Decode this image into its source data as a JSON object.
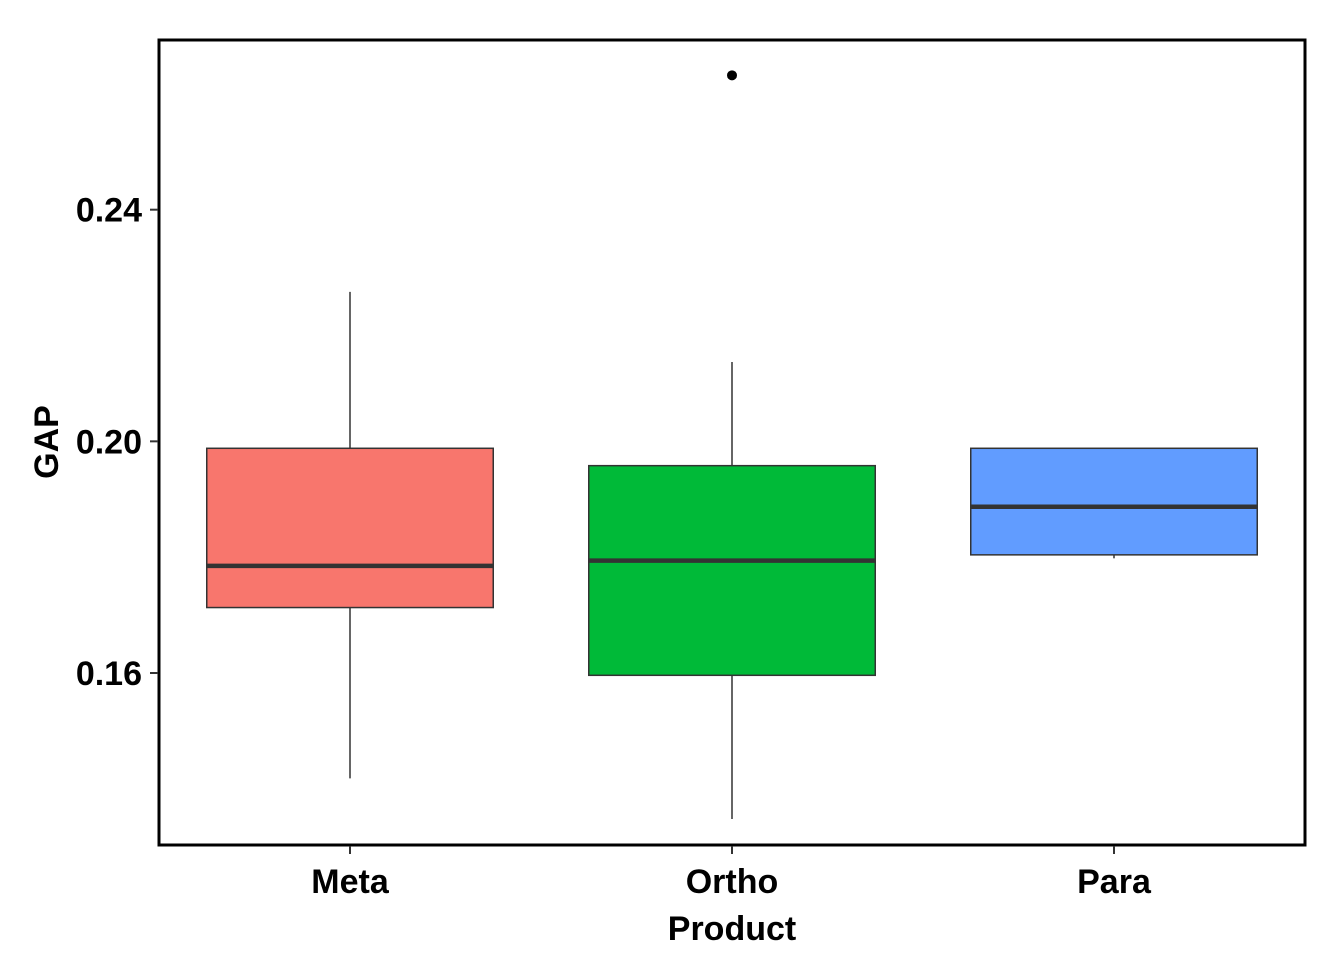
{
  "chart_data": {
    "type": "boxplot",
    "title": "",
    "xlabel": "Product",
    "ylabel": "GAP",
    "categories": [
      "Meta",
      "Ortho",
      "Para"
    ],
    "yticks": [
      "0.16",
      "0.20",
      "0.24"
    ],
    "ytick_values": [
      0.16,
      0.2,
      0.24
    ],
    "ylim": [
      0.1303,
      0.2693
    ],
    "grid": false,
    "legend": "none",
    "series": [
      {
        "category": "Meta",
        "color": "#F8766D",
        "whisker_low": 0.1418,
        "q1": 0.1713,
        "median": 0.1785,
        "q3": 0.1988,
        "whisker_high": 0.2258,
        "outliers": []
      },
      {
        "category": "Ortho",
        "color": "#00BA38",
        "whisker_low": 0.1348,
        "q1": 0.1596,
        "median": 0.1794,
        "q3": 0.1958,
        "whisker_high": 0.2137,
        "outliers": [
          0.2632
        ]
      },
      {
        "category": "Para",
        "color": "#619CFF",
        "whisker_low": 0.1798,
        "q1": 0.1804,
        "median": 0.1887,
        "q3": 0.1988,
        "whisker_high": 0.1988,
        "outliers": []
      }
    ]
  }
}
